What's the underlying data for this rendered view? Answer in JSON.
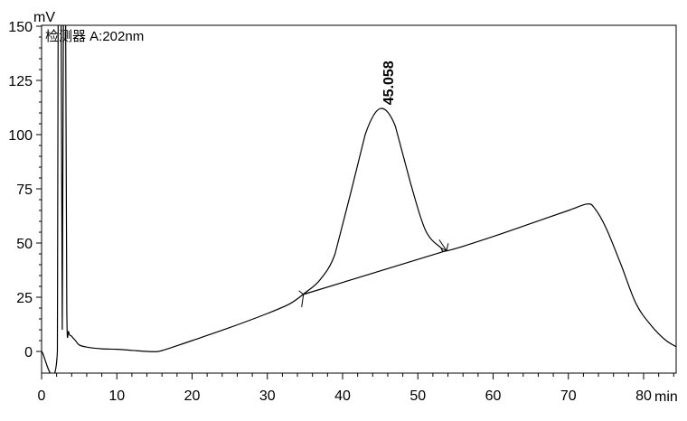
{
  "chart_data": {
    "type": "line",
    "detector_label": "检测器 A:202nm",
    "y_unit": "mV",
    "x_unit": "min",
    "ylim": [
      -12,
      150
    ],
    "xlim": [
      0,
      85
    ],
    "y_ticks": [
      0,
      25,
      50,
      75,
      100,
      125,
      150
    ],
    "x_ticks": [
      0,
      10,
      20,
      30,
      40,
      50,
      60,
      70,
      80
    ],
    "y_tick_labels": [
      "0",
      "25",
      "50",
      "75",
      "100",
      "125",
      "150"
    ],
    "x_tick_labels": [
      "0",
      "10",
      "20",
      "30",
      "40",
      "50",
      "60",
      "70",
      "80"
    ],
    "signal": [
      [
        0,
        0
      ],
      [
        2.1,
        0
      ],
      [
        2.2,
        150
      ],
      [
        2.6,
        150
      ],
      [
        2.75,
        10
      ],
      [
        2.9,
        150
      ],
      [
        3.2,
        150
      ],
      [
        3.35,
        20
      ],
      [
        3.6,
        9
      ],
      [
        4.0,
        7
      ],
      [
        4.5,
        5
      ],
      [
        5,
        3
      ],
      [
        6,
        2
      ],
      [
        8,
        1.2
      ],
      [
        10,
        1
      ],
      [
        12,
        0.5
      ],
      [
        14,
        0
      ],
      [
        15.5,
        0
      ],
      [
        17,
        1.5
      ],
      [
        20,
        5
      ],
      [
        25,
        11
      ],
      [
        30,
        17.5
      ],
      [
        33,
        22
      ],
      [
        35,
        27
      ],
      [
        37,
        33
      ],
      [
        39,
        45
      ],
      [
        41,
        72
      ],
      [
        43,
        100
      ],
      [
        45,
        112
      ],
      [
        47,
        104
      ],
      [
        49,
        78
      ],
      [
        51,
        56
      ],
      [
        53,
        48
      ],
      [
        54,
        46.5
      ],
      [
        60,
        53
      ],
      [
        65,
        59
      ],
      [
        70,
        65
      ],
      [
        72.5,
        68
      ],
      [
        73.5,
        66
      ],
      [
        75,
        57
      ],
      [
        77,
        40
      ],
      [
        79,
        22
      ],
      [
        81,
        12
      ],
      [
        83,
        5
      ],
      [
        85,
        1
      ]
    ],
    "baseline": [
      [
        34.8,
        26.3
      ],
      [
        53.8,
        46.5
      ]
    ],
    "peaks": [
      {
        "retention_time": 45.058,
        "height": 112,
        "label": "45.058"
      }
    ]
  }
}
